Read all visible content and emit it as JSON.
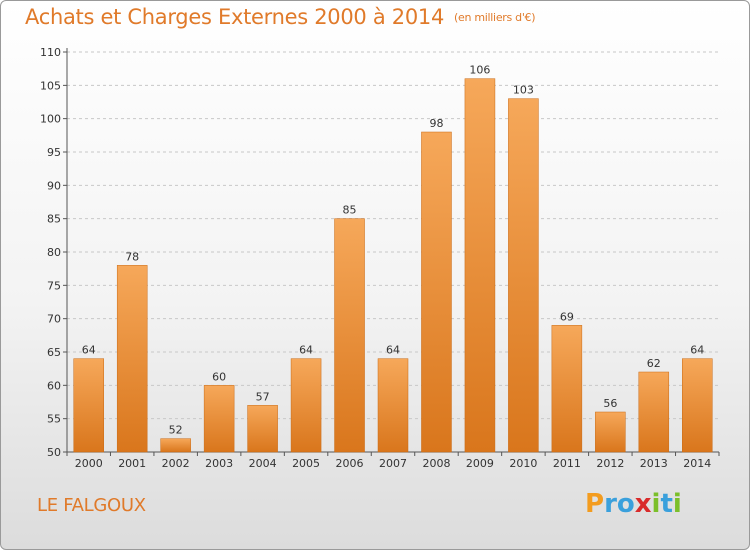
{
  "header": {
    "title": "Achats et Charges Externes 2000 à 2014",
    "unit": "(en milliers d'€)"
  },
  "footer": {
    "town": "LE FALGOUX",
    "logo": [
      "P",
      "r",
      "o",
      "x",
      "i",
      "t",
      "i"
    ]
  },
  "colors": {
    "accent": "#e07a2a",
    "bar_top": "#f6a85a",
    "bar_bottom": "#d9761c",
    "grid": "#c8c8c8"
  },
  "chart_data": {
    "type": "bar",
    "title": "Achats et Charges Externes 2000 à 2014",
    "subtitle": "(en milliers d'€)",
    "categories": [
      "2000",
      "2001",
      "2002",
      "2003",
      "2004",
      "2005",
      "2006",
      "2007",
      "2008",
      "2009",
      "2010",
      "2011",
      "2012",
      "2013",
      "2014"
    ],
    "values": [
      64,
      78,
      52,
      60,
      57,
      64,
      85,
      64,
      98,
      106,
      103,
      69,
      56,
      62,
      64
    ],
    "ylim": [
      50,
      110
    ],
    "yticks": [
      50,
      55,
      60,
      65,
      70,
      75,
      80,
      85,
      90,
      95,
      100,
      105,
      110
    ],
    "grid": true,
    "data_labels": true
  }
}
